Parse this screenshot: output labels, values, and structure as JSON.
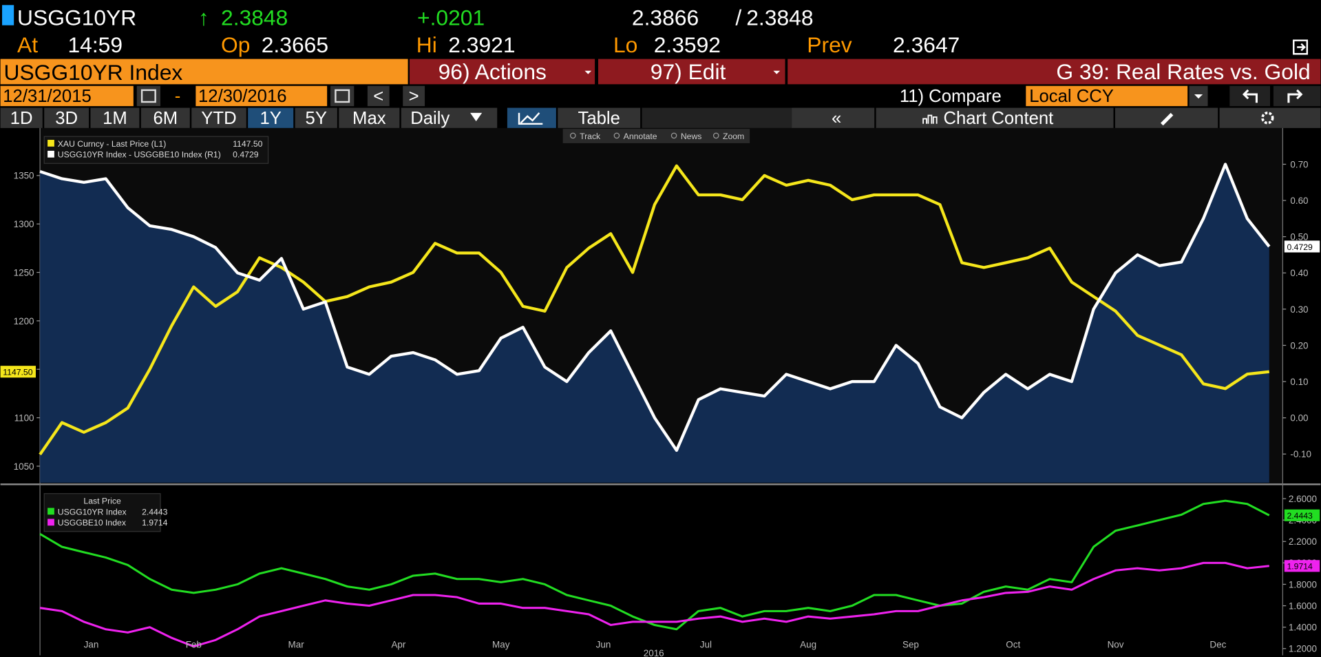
{
  "header": {
    "ticker": "USGG10YR",
    "arrow": "↑",
    "last": "2.3848",
    "change": "+.0201",
    "bid": "2.3866",
    "sep": "/",
    "ask": "2.3848",
    "at_label": "At",
    "time": "14:59",
    "op_label": "Op",
    "op": "2.3665",
    "hi_label": "Hi",
    "hi": "2.3921",
    "lo_label": "Lo",
    "lo": "2.3592",
    "prev_label": "Prev",
    "prev": "2.3647"
  },
  "toolbar": {
    "security": "USGG10YR Index",
    "actions": "96) Actions",
    "edit": "97) Edit",
    "title": "G 39: Real Rates vs. Gold"
  },
  "dates": {
    "start": "12/31/2015",
    "dash": "-",
    "end": "12/30/2016",
    "back": "<",
    "forward": ">",
    "compare": "11) Compare",
    "currency": "Local CCY"
  },
  "tabs": {
    "periods": [
      "1D",
      "3D",
      "1M",
      "6M",
      "YTD",
      "1Y",
      "5Y",
      "Max"
    ],
    "active": 5,
    "frequency": "Daily",
    "table": "Table",
    "collapse": "«",
    "content": "Chart Content"
  },
  "chart_tools": [
    "Track",
    "Annotate",
    "News",
    "Zoom"
  ],
  "chart_data": [
    {
      "type": "line",
      "ylim": [
        1033,
        1399
      ],
      "yticks": [
        1050,
        1100,
        1150,
        1200,
        1250,
        1300,
        1350
      ],
      "y2lim": [
        -0.179,
        0.8
      ],
      "y2ticks": [
        {
          "value": -0.1,
          "label": "-0.10"
        },
        {
          "value": 0,
          "label": "0.00"
        },
        {
          "value": 0.1,
          "label": "0.10"
        },
        {
          "value": 0.2,
          "label": "0.20"
        },
        {
          "value": 0.3,
          "label": "0.30"
        },
        {
          "value": 0.4,
          "label": "0.40"
        },
        {
          "value": 0.5,
          "label": "0.50"
        },
        {
          "value": 0.6,
          "label": "0.60"
        },
        {
          "value": 0.7,
          "label": "0.70"
        }
      ],
      "series": [
        {
          "name": "XAU Curncy - Last Price (L1)",
          "color": "#f5e61b",
          "last_value_label": "1147.50",
          "values": [
            1062,
            1095,
            1085,
            1095,
            1110,
            1150,
            1195,
            1235,
            1215,
            1230,
            1265,
            1255,
            1240,
            1220,
            1225,
            1235,
            1240,
            1250,
            1280,
            1270,
            1270,
            1250,
            1215,
            1210,
            1255,
            1275,
            1290,
            1250,
            1320,
            1360,
            1330,
            1330,
            1325,
            1350,
            1340,
            1345,
            1340,
            1325,
            1330,
            1330,
            1330,
            1320,
            1260,
            1255,
            1260,
            1265,
            1275,
            1240,
            1225,
            1210,
            1185,
            1175,
            1165,
            1135,
            1130,
            1145,
            1147.5
          ]
        },
        {
          "name": "USGG10YR Index - USGGBE10 Index (R1)",
          "color": "#ffffff",
          "axis": "y2",
          "area_color": "#13305a",
          "last_value_label": "0.4729",
          "values": [
            0.68,
            0.66,
            0.65,
            0.66,
            0.58,
            0.53,
            0.52,
            0.5,
            0.47,
            0.4,
            0.38,
            0.44,
            0.3,
            0.32,
            0.14,
            0.12,
            0.17,
            0.18,
            0.16,
            0.12,
            0.13,
            0.22,
            0.25,
            0.14,
            0.1,
            0.18,
            0.24,
            0.12,
            0,
            -0.09,
            0.05,
            0.08,
            0.07,
            0.06,
            0.12,
            0.1,
            0.08,
            0.1,
            0.1,
            0.2,
            0.15,
            0.03,
            0,
            0.07,
            0.12,
            0.08,
            0.12,
            0.1,
            0.3,
            0.4,
            0.45,
            0.42,
            0.43,
            0.55,
            0.7,
            0.55,
            0.4729
          ]
        }
      ]
    },
    {
      "type": "line",
      "legend_title": "Last Price",
      "yaxis_side": "right",
      "ylim": [
        1.145,
        2.71
      ],
      "yticks": [
        {
          "value": 1.2,
          "label": "1.2000"
        },
        {
          "value": 1.4,
          "label": "1.4000"
        },
        {
          "value": 1.6,
          "label": "1.6000"
        },
        {
          "value": 1.8,
          "label": "1.8000"
        },
        {
          "value": 2.0,
          "label": "2.0000"
        },
        {
          "value": 2.2,
          "label": "2.2000"
        },
        {
          "value": 2.4,
          "label": "2.4000"
        },
        {
          "value": 2.6,
          "label": "2.6000"
        }
      ],
      "months": [
        "Jan",
        "Feb",
        "Mar",
        "Apr",
        "May",
        "Jun",
        "Jul",
        "Aug",
        "Sep",
        "Oct",
        "Nov",
        "Dec"
      ],
      "x_caption": "2016",
      "series": [
        {
          "name": "USGG10YR Index",
          "color": "#22dd22",
          "last_value_label": "2.4443",
          "values": [
            2.27,
            2.15,
            2.1,
            2.05,
            1.98,
            1.85,
            1.75,
            1.72,
            1.75,
            1.8,
            1.9,
            1.95,
            1.9,
            1.85,
            1.78,
            1.75,
            1.8,
            1.88,
            1.9,
            1.85,
            1.85,
            1.82,
            1.85,
            1.8,
            1.7,
            1.65,
            1.6,
            1.5,
            1.42,
            1.38,
            1.55,
            1.58,
            1.5,
            1.55,
            1.55,
            1.58,
            1.55,
            1.6,
            1.7,
            1.7,
            1.65,
            1.6,
            1.62,
            1.73,
            1.78,
            1.75,
            1.85,
            1.82,
            2.15,
            2.3,
            2.35,
            2.4,
            2.45,
            2.55,
            2.58,
            2.55,
            2.4443
          ]
        },
        {
          "name": "USGGBE10 Index",
          "color": "#ee22ee",
          "last_value_label": "1.9714",
          "values": [
            1.58,
            1.55,
            1.45,
            1.38,
            1.35,
            1.4,
            1.3,
            1.22,
            1.28,
            1.38,
            1.5,
            1.55,
            1.6,
            1.65,
            1.62,
            1.6,
            1.65,
            1.7,
            1.7,
            1.68,
            1.62,
            1.62,
            1.58,
            1.58,
            1.55,
            1.52,
            1.42,
            1.45,
            1.45,
            1.45,
            1.48,
            1.5,
            1.45,
            1.48,
            1.45,
            1.5,
            1.48,
            1.5,
            1.52,
            1.55,
            1.55,
            1.6,
            1.65,
            1.68,
            1.72,
            1.73,
            1.78,
            1.75,
            1.85,
            1.93,
            1.95,
            1.93,
            1.95,
            2.0,
            2.0,
            1.95,
            1.9714
          ]
        }
      ]
    }
  ]
}
